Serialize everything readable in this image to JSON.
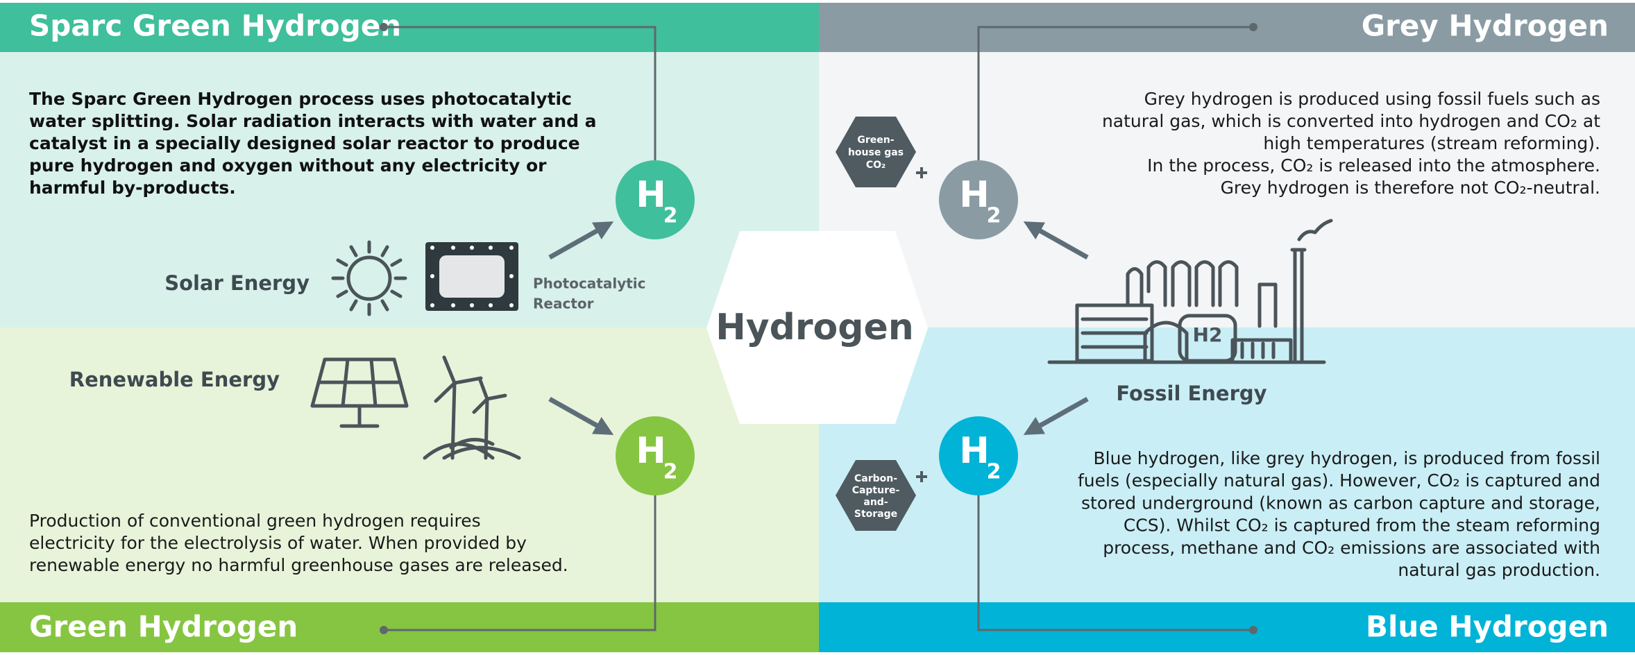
{
  "center": {
    "title": "Hydrogen"
  },
  "sparc": {
    "title": "Sparc Green Hydrogen",
    "lines": [
      "The Sparc Green Hydrogen process uses photocatalytic",
      "water splitting. Solar radiation interacts with water and a",
      "catalyst in a specially designed solar reactor to produce",
      "pure hydrogen and oxygen without any electricity or",
      "harmful by-products."
    ],
    "energy_label": "Solar Energy",
    "reactor_label": [
      "Photocatalytic",
      "Reactor"
    ],
    "badge": {
      "main": "H",
      "sub": "2"
    }
  },
  "grey": {
    "title": "Grey Hydrogen",
    "lines": [
      "Grey hydrogen is produced using fossil fuels such as",
      "natural gas, which is converted into hydrogen and CO₂ at",
      "high temperatures (stream reforming).",
      "In the process, CO₂ is released into the atmosphere.",
      "Grey hydrogen is therefore not CO₂-neutral."
    ],
    "hex_label": [
      "Green-",
      "house gas",
      "CO₂"
    ],
    "badge": {
      "main": "H",
      "sub": "2"
    }
  },
  "green": {
    "title": "Green Hydrogen",
    "lines": [
      "Production of conventional green hydrogen requires",
      "electricity for the electrolysis of water. When provided by",
      "renewable energy no harmful greenhouse gases are released."
    ],
    "energy_label": "Renewable Energy",
    "badge": {
      "main": "H",
      "sub": "2"
    }
  },
  "blue": {
    "title": "Blue Hydrogen",
    "lines": [
      "Blue hydrogen, like grey hydrogen, is produced from fossil",
      "fuels (especially natural gas). However, CO₂ is captured and",
      "stored underground (known as carbon capture and storage,",
      "CCS). Whilst CO₂ is captured from the steam reforming",
      "process, methane and CO₂ emissions are associated with",
      "natural gas production."
    ],
    "hex_label": [
      "Carbon-",
      "Capture-",
      "and-",
      "Storage"
    ],
    "badge": {
      "main": "H",
      "sub": "2"
    }
  },
  "fossil": {
    "energy_label": "Fossil Energy",
    "factory_label": "H2"
  }
}
